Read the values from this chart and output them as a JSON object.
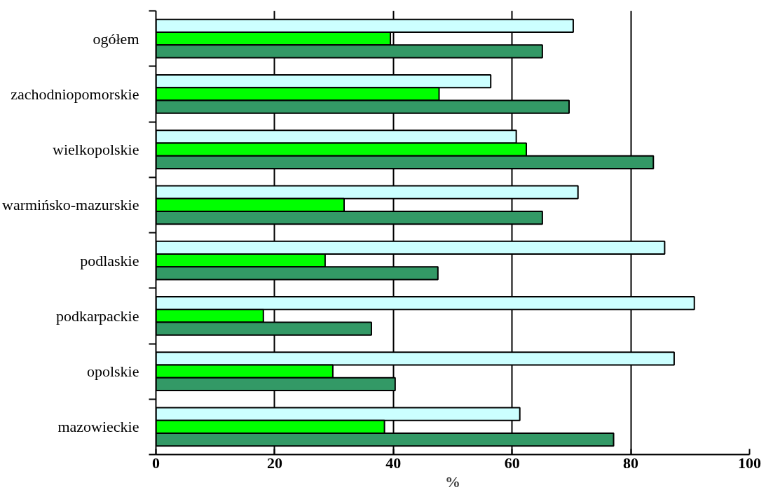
{
  "chart_data": {
    "type": "bar",
    "orientation": "horizontal",
    "xlabel": "%",
    "categories": [
      "ogółem",
      "zachodniopomorskie",
      "wielkopolskie",
      "warmińsko-mazurskie",
      "podlaskie",
      "podkarpackie",
      "opolskie",
      "mazowieckie"
    ],
    "series": [
      {
        "color": "#ccffff",
        "values": [
          70.3,
          56.4,
          60.7,
          71.1,
          85.7,
          90.7,
          87.3,
          61.3
        ]
      },
      {
        "color": "#00ff00",
        "values": [
          39.5,
          47.7,
          62.4,
          31.7,
          28.5,
          18.1,
          29.8,
          38.5
        ]
      },
      {
        "color": "#339966",
        "values": [
          65.1,
          69.6,
          83.8,
          65.1,
          47.5,
          36.3,
          40.3,
          77.1
        ]
      }
    ],
    "xlim": [
      0,
      100
    ],
    "xticks": [
      0,
      20,
      40,
      60,
      80,
      100
    ],
    "grid": "x"
  }
}
